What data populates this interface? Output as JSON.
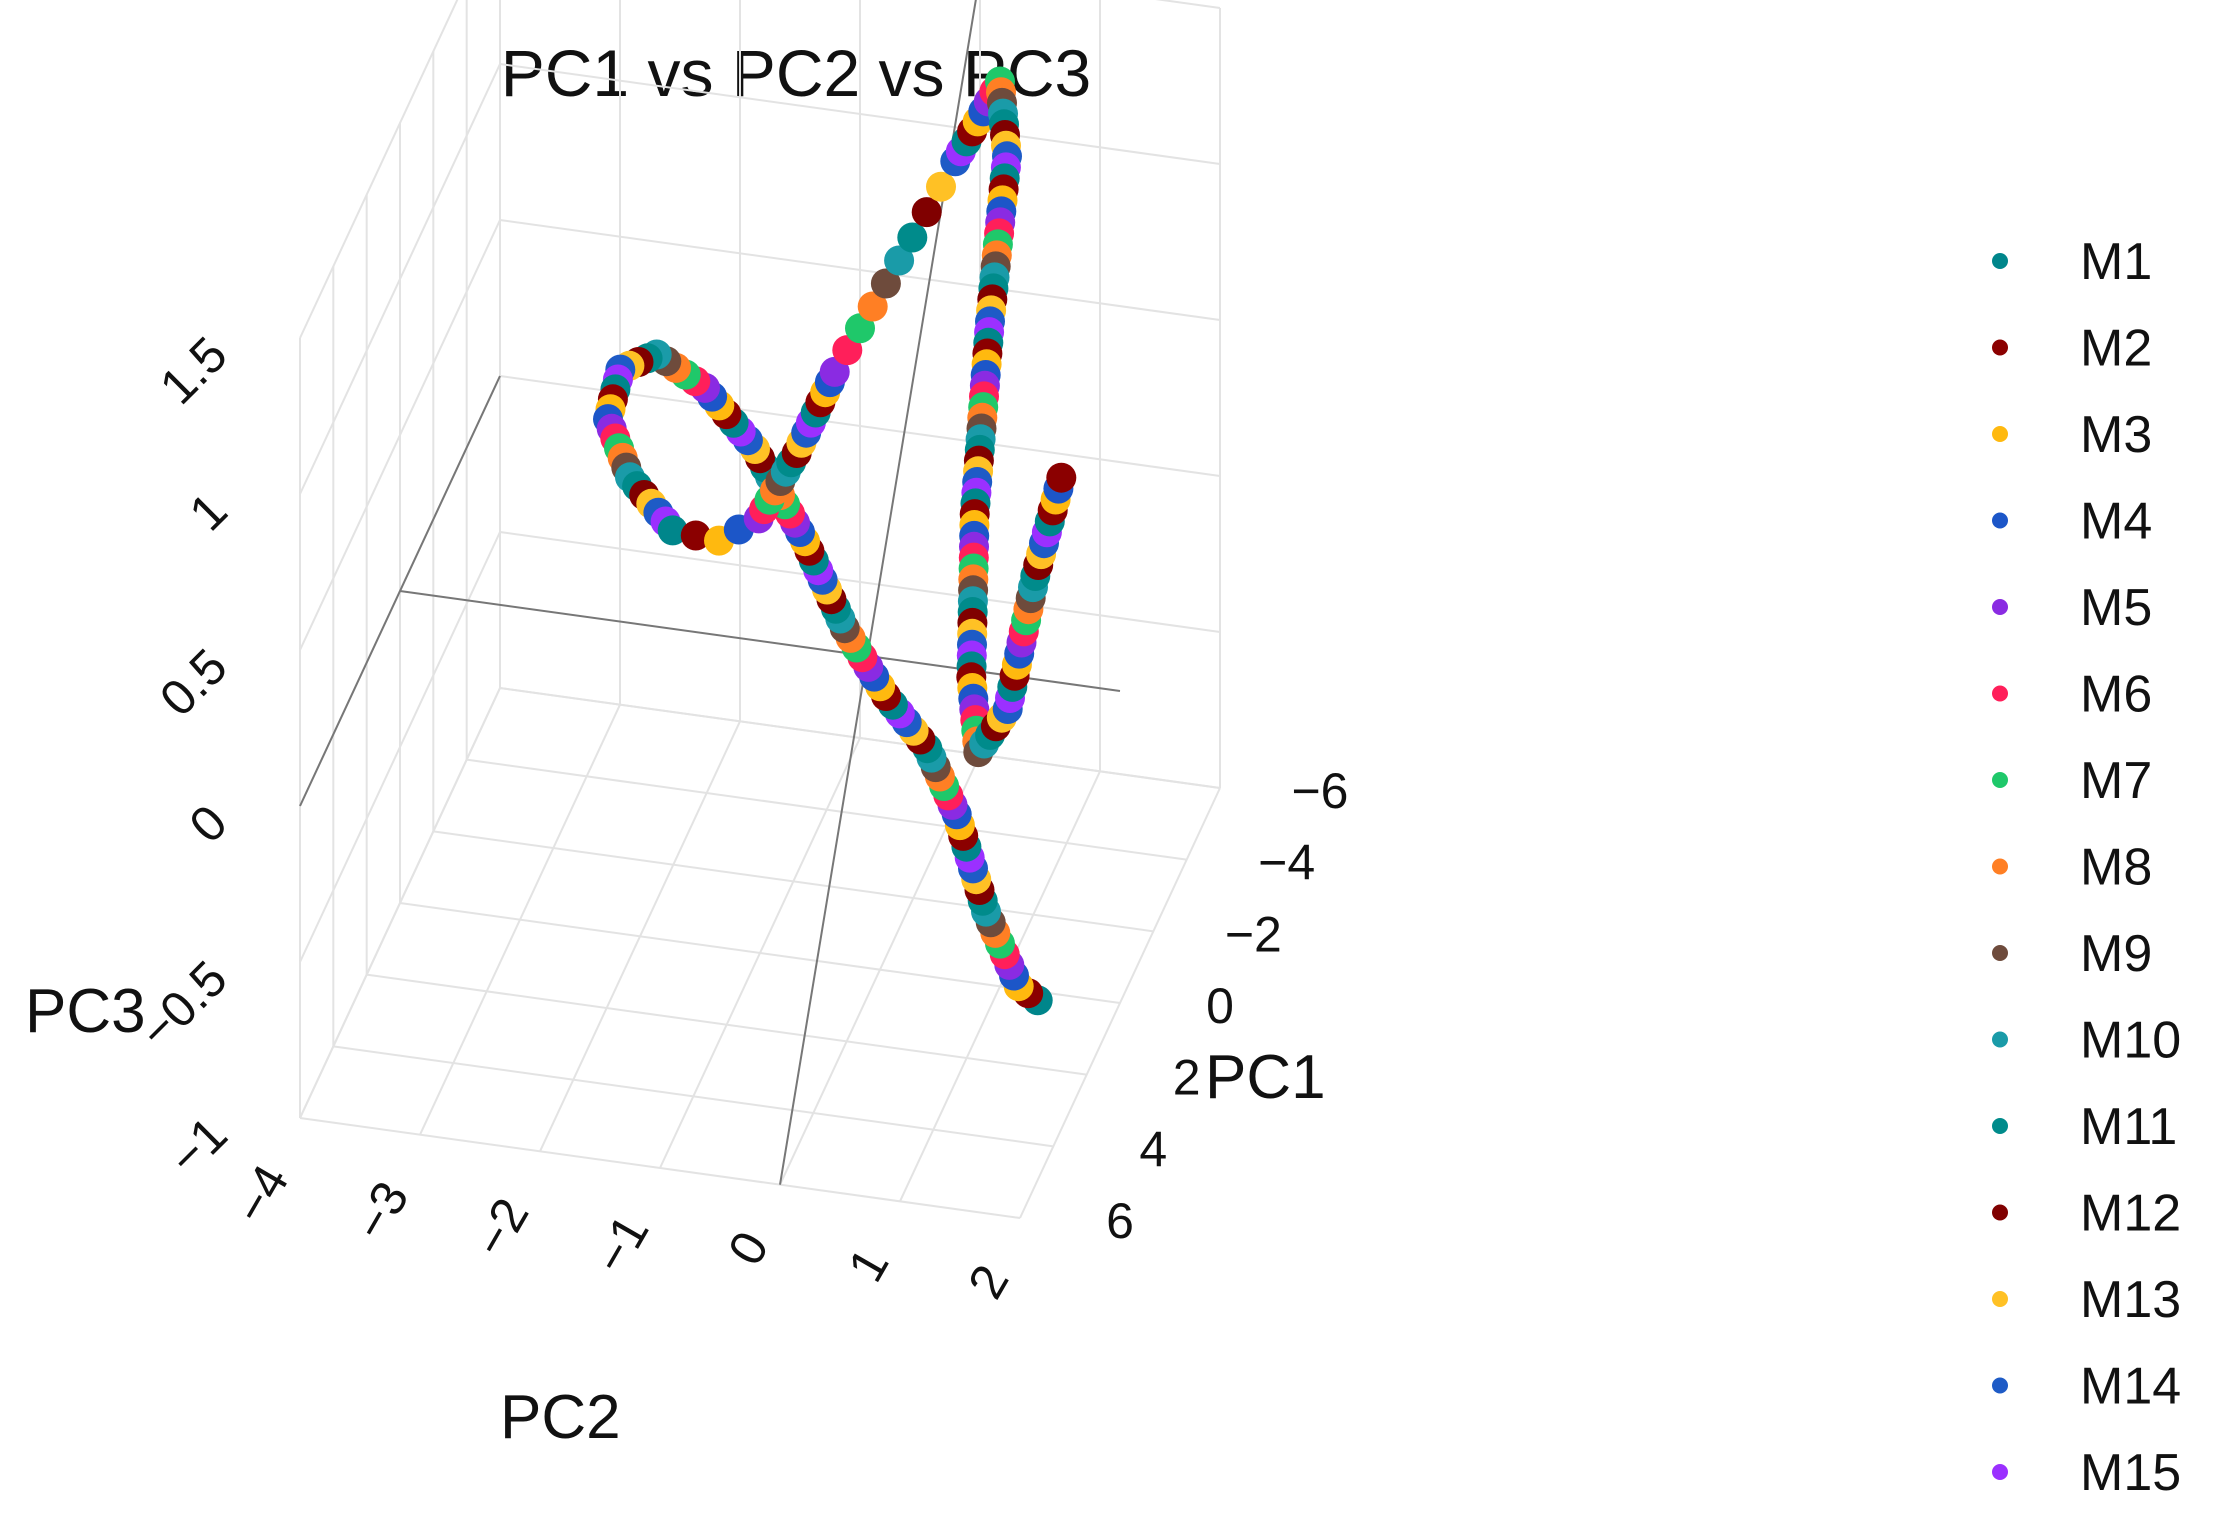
{
  "chart_data": {
    "type": "scatter",
    "title": "PC1 vs PC2 vs PC3",
    "axes": {
      "x": {
        "label": "PC2",
        "ticks": [
          "−4",
          "−3",
          "−2",
          "−1",
          "0",
          "1",
          "2"
        ],
        "range": [
          -4,
          2
        ]
      },
      "y": {
        "label": "PC1",
        "ticks": [
          "−6",
          "−4",
          "−2",
          "0",
          "2",
          "4",
          "6"
        ],
        "range": [
          -6,
          6
        ]
      },
      "z": {
        "label": "PC3",
        "ticks": [
          "−1",
          "−0.5",
          "0",
          "0.5",
          "1",
          "1.5"
        ],
        "range": [
          -1,
          1.5
        ]
      }
    },
    "grid": true,
    "legend_position": "right",
    "series": [
      {
        "name": "M1",
        "color": "#00868B"
      },
      {
        "name": "M2",
        "color": "#8B0000"
      },
      {
        "name": "M3",
        "color": "#FFB90F"
      },
      {
        "name": "M4",
        "color": "#1C56C8"
      },
      {
        "name": "M5",
        "color": "#8A2BE2"
      },
      {
        "name": "M6",
        "color": "#FF1F5A"
      },
      {
        "name": "M7",
        "color": "#1FC86A"
      },
      {
        "name": "M8",
        "color": "#FF7F24"
      },
      {
        "name": "M9",
        "color": "#6E4B3C"
      },
      {
        "name": "M10",
        "color": "#1A9BA8"
      },
      {
        "name": "M11",
        "color": "#008B8B"
      },
      {
        "name": "M12",
        "color": "#800000"
      },
      {
        "name": "M13",
        "color": "#FFC125"
      },
      {
        "name": "M14",
        "color": "#1E5BC6"
      },
      {
        "name": "M15",
        "color": "#9B30FF"
      }
    ],
    "trajectory_points_3d": [
      [
        1.8,
        3.5,
        -0.6
      ],
      [
        1.6,
        3.2,
        -0.6
      ],
      [
        1.3,
        3.0,
        -0.4
      ],
      [
        1.0,
        2.6,
        -0.15
      ],
      [
        0.7,
        2.2,
        0.0
      ],
      [
        0.3,
        1.8,
        0.1
      ],
      [
        -0.1,
        1.4,
        0.25
      ],
      [
        -0.5,
        0.9,
        0.45
      ],
      [
        -1.0,
        0.3,
        0.65
      ],
      [
        -1.5,
        -0.3,
        0.75
      ],
      [
        -2.0,
        -1.0,
        0.75
      ],
      [
        -2.4,
        -1.7,
        0.6
      ],
      [
        -2.6,
        -2.4,
        0.35
      ],
      [
        -2.5,
        -3.0,
        0.1
      ],
      [
        -2.2,
        -3.4,
        -0.1
      ],
      [
        -1.8,
        -3.3,
        -0.1
      ],
      [
        -1.4,
        -2.8,
        0.05
      ],
      [
        -1.0,
        -2.2,
        0.35
      ],
      [
        -0.6,
        -1.6,
        0.7
      ],
      [
        -0.2,
        -1.0,
        1.0
      ],
      [
        0.2,
        -0.5,
        1.3
      ],
      [
        0.6,
        -0.2,
        1.6
      ],
      [
        1.0,
        0.0,
        1.9
      ],
      [
        1.1,
        0.3,
        1.7
      ],
      [
        1.0,
        0.6,
        1.2
      ],
      [
        0.9,
        0.8,
        0.6
      ],
      [
        0.9,
        1.0,
        0.1
      ],
      [
        1.0,
        1.3,
        -0.1
      ],
      [
        1.3,
        1.7,
        0.1
      ],
      [
        1.6,
        2.2,
        0.6
      ],
      [
        1.9,
        2.8,
        1.0
      ]
    ]
  }
}
